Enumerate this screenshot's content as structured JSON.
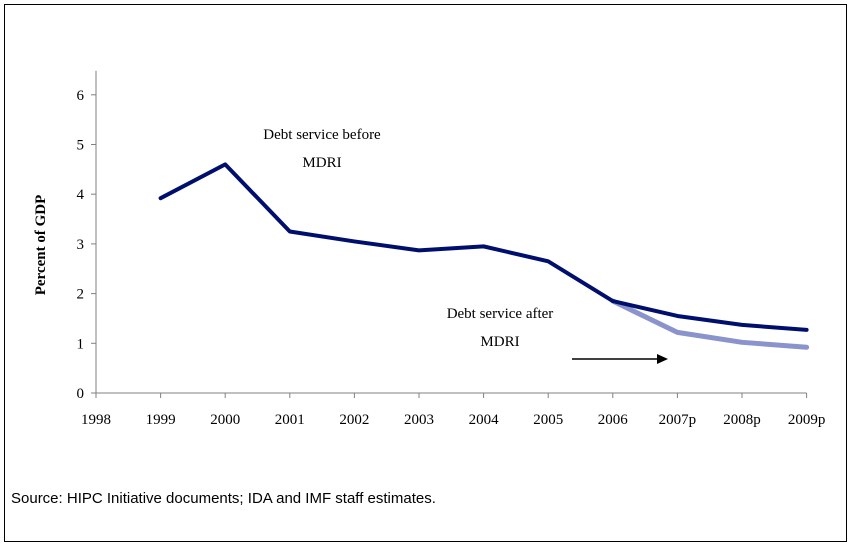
{
  "chart_data": {
    "type": "line",
    "x": [
      "1998",
      "1999",
      "2000",
      "2001",
      "2002",
      "2003",
      "2004",
      "2005",
      "2006",
      "2007p",
      "2008p",
      "2009p"
    ],
    "ylabel": "Percent of GDP",
    "xlabel": "",
    "ylim": [
      0,
      6
    ],
    "yticks": [
      "0",
      "1",
      "2",
      "3",
      "4",
      "5",
      "6"
    ],
    "grid": false,
    "series": [
      {
        "name": "Debt service before MDRI",
        "color": "#000f6e",
        "values": [
          null,
          3.92,
          4.6,
          3.25,
          3.05,
          2.87,
          2.95,
          2.65,
          1.85,
          1.55,
          1.37,
          1.27
        ]
      },
      {
        "name": "Debt service after MDRI",
        "color": "#8a93cc",
        "values": [
          null,
          null,
          null,
          null,
          null,
          null,
          null,
          null,
          1.85,
          1.22,
          1.02,
          0.92
        ]
      }
    ],
    "annotations": {
      "before_line1": "Debt service before",
      "before_line2": "MDRI",
      "after_line1": "Debt service after",
      "after_line2": "MDRI"
    }
  },
  "source": "Source: HIPC Initiative documents; IDA and IMF staff estimates."
}
